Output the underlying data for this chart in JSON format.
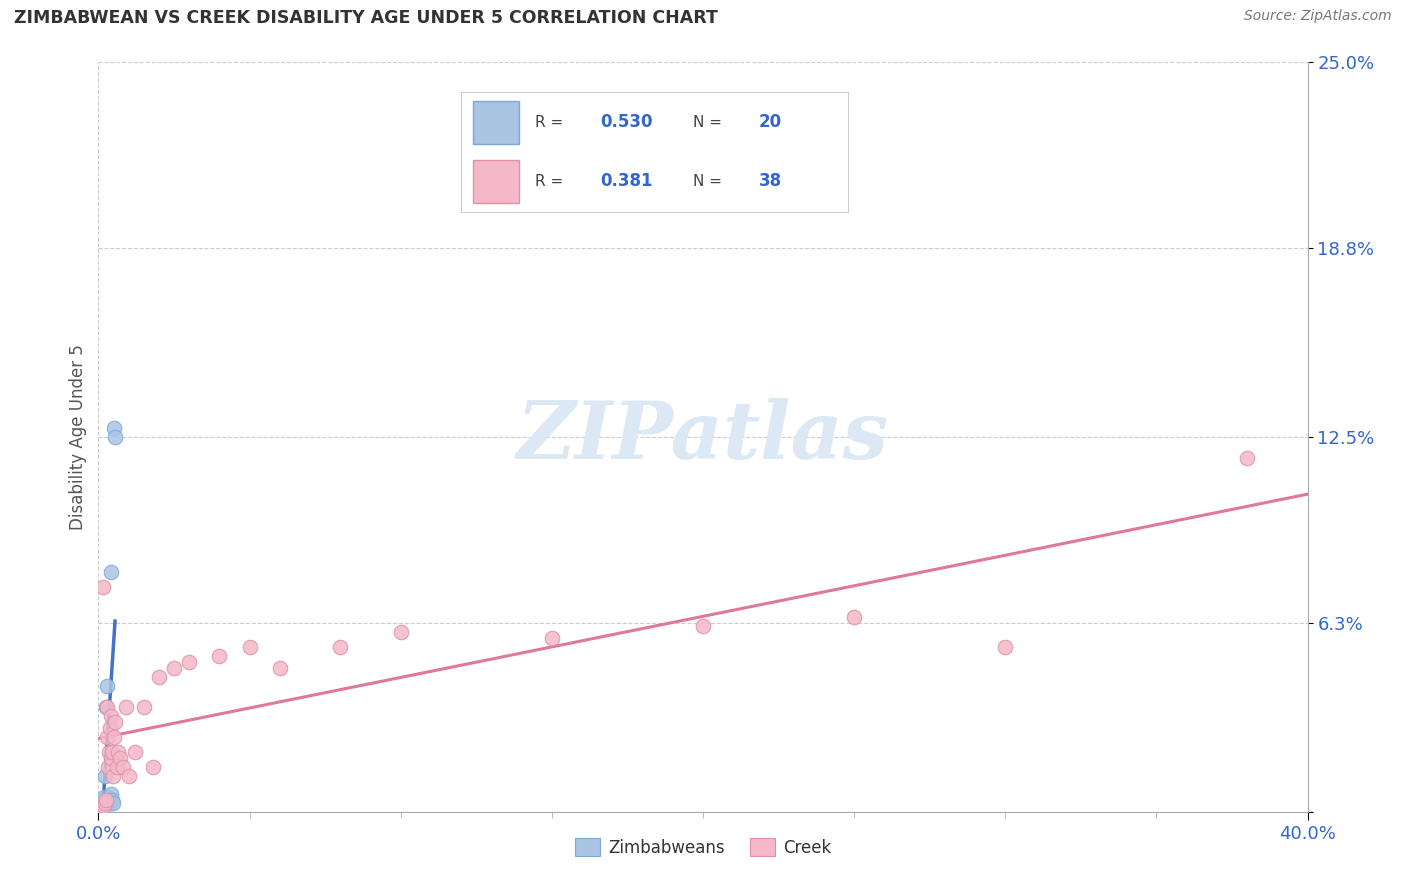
{
  "title": "ZIMBABWEAN VS CREEK DISABILITY AGE UNDER 5 CORRELATION CHART",
  "source_text": "Source: ZipAtlas.com",
  "ylabel_label": "Disability Age Under 5",
  "xlim": [
    0.0,
    40.0
  ],
  "ylim": [
    0.0,
    25.0
  ],
  "ytick_values": [
    0.0,
    6.3,
    12.5,
    18.8,
    25.0
  ],
  "ytick_labels": [
    "",
    "6.3%",
    "12.5%",
    "18.8%",
    "25.0%"
  ],
  "xtick_values": [
    0.0,
    40.0
  ],
  "xtick_labels": [
    "0.0%",
    "40.0%"
  ],
  "blue_fill": "#aac4e4",
  "blue_edge": "#7aaad4",
  "blue_line_color": "#4472c4",
  "pink_fill": "#f4b8c8",
  "pink_edge": "#e090a8",
  "pink_line_color": "#e07898",
  "watermark_color": "#dce8f4",
  "legend_R1": "R = 0.530",
  "legend_N1": "N = 20",
  "legend_R2": "R =  0.381",
  "legend_N2": "N = 38",
  "zim_x": [
    0.05,
    0.08,
    0.1,
    0.12,
    0.15,
    0.18,
    0.2,
    0.22,
    0.25,
    0.28,
    0.3,
    0.32,
    0.35,
    0.38,
    0.4,
    0.42,
    0.45,
    0.48,
    0.5,
    0.55
  ],
  "zim_y": [
    0.1,
    0.2,
    0.3,
    0.2,
    0.3,
    0.4,
    0.5,
    1.2,
    3.5,
    4.2,
    0.3,
    0.5,
    0.4,
    0.3,
    8.0,
    0.6,
    0.4,
    0.3,
    12.8,
    12.5
  ],
  "creek_x": [
    0.08,
    0.15,
    0.2,
    0.22,
    0.25,
    0.28,
    0.3,
    0.32,
    0.35,
    0.38,
    0.4,
    0.42,
    0.45,
    0.48,
    0.5,
    0.55,
    0.6,
    0.65,
    0.7,
    0.8,
    0.9,
    1.0,
    1.2,
    1.5,
    1.8,
    2.0,
    2.5,
    3.0,
    4.0,
    5.0,
    6.0,
    8.0,
    10.0,
    15.0,
    20.0,
    25.0,
    30.0,
    38.0
  ],
  "creek_y": [
    0.1,
    7.5,
    0.2,
    0.3,
    0.4,
    2.5,
    3.5,
    1.5,
    2.0,
    2.8,
    3.2,
    1.8,
    2.0,
    1.2,
    2.5,
    3.0,
    1.5,
    2.0,
    1.8,
    1.5,
    3.5,
    1.2,
    2.0,
    3.5,
    1.5,
    4.5,
    4.8,
    5.0,
    5.2,
    5.5,
    4.8,
    5.5,
    6.0,
    5.8,
    6.2,
    6.5,
    5.5,
    11.8
  ]
}
